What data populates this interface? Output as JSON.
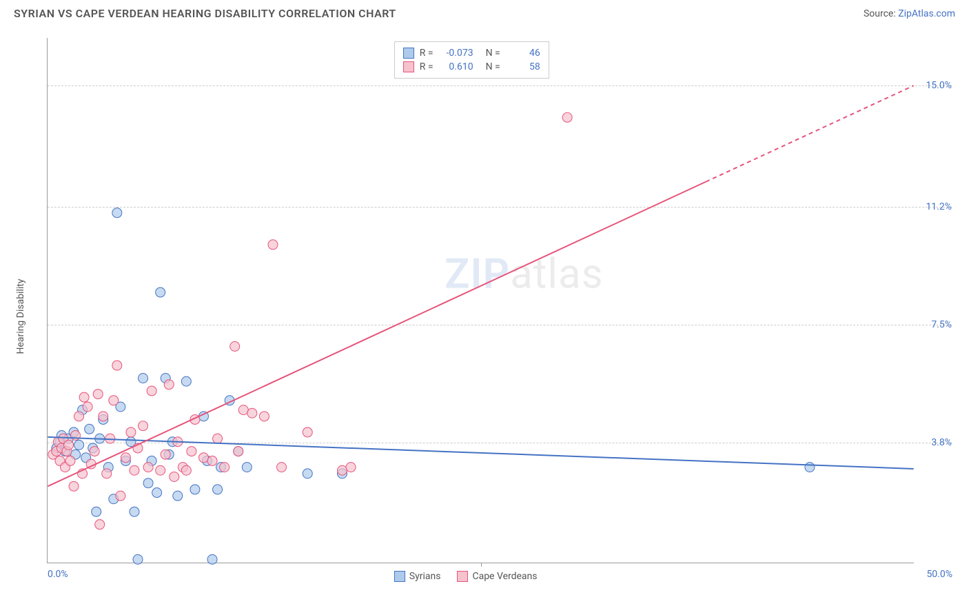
{
  "title": "SYRIAN VS CAPE VERDEAN HEARING DISABILITY CORRELATION CHART",
  "source_label": "Source:",
  "source_link": "ZipAtlas.com",
  "y_axis_label": "Hearing Disability",
  "watermark_zip": "ZIP",
  "watermark_atlas": "atlas",
  "chart": {
    "type": "scatter",
    "xlim": [
      0,
      50
    ],
    "ylim": [
      0,
      16.5
    ],
    "x_ticks": [
      0,
      25,
      50
    ],
    "x_tick_labels": [
      "0.0%",
      "",
      "50.0%"
    ],
    "y_gridlines": [
      3.8,
      7.5,
      11.2,
      15.0
    ],
    "y_tick_labels": [
      "3.8%",
      "7.5%",
      "11.2%",
      "15.0%"
    ],
    "background_color": "#ffffff",
    "grid_color": "#cccccc",
    "axis_color": "#999999",
    "label_color": "#4472c4",
    "series": [
      {
        "name": "Syrians",
        "fill_color": "#aecbeb",
        "stroke_color": "#4472c4",
        "R": "-0.073",
        "N": "46",
        "trend": {
          "x1": 0,
          "y1": 3.95,
          "x2": 50,
          "y2": 2.95,
          "dash_from_x": 50
        },
        "points": [
          [
            0.5,
            3.6
          ],
          [
            0.7,
            3.8
          ],
          [
            0.8,
            4.0
          ],
          [
            1.0,
            3.5
          ],
          [
            1.2,
            3.9
          ],
          [
            1.5,
            4.1
          ],
          [
            1.6,
            3.4
          ],
          [
            1.8,
            3.7
          ],
          [
            2.0,
            4.8
          ],
          [
            2.2,
            3.3
          ],
          [
            2.4,
            4.2
          ],
          [
            2.6,
            3.6
          ],
          [
            2.8,
            1.6
          ],
          [
            3.0,
            3.9
          ],
          [
            3.2,
            4.5
          ],
          [
            3.5,
            3.0
          ],
          [
            3.8,
            2.0
          ],
          [
            4.0,
            11.0
          ],
          [
            4.2,
            4.9
          ],
          [
            4.5,
            3.2
          ],
          [
            4.8,
            3.8
          ],
          [
            5.0,
            1.6
          ],
          [
            5.2,
            0.1
          ],
          [
            5.5,
            5.8
          ],
          [
            5.8,
            2.5
          ],
          [
            6.0,
            3.2
          ],
          [
            6.3,
            2.2
          ],
          [
            6.5,
            8.5
          ],
          [
            6.8,
            5.8
          ],
          [
            7.0,
            3.4
          ],
          [
            7.2,
            3.8
          ],
          [
            7.5,
            2.1
          ],
          [
            8.0,
            5.7
          ],
          [
            8.5,
            2.3
          ],
          [
            9.0,
            4.6
          ],
          [
            9.2,
            3.2
          ],
          [
            9.5,
            0.1
          ],
          [
            9.8,
            2.3
          ],
          [
            10.0,
            3.0
          ],
          [
            10.5,
            5.1
          ],
          [
            11.0,
            3.5
          ],
          [
            11.5,
            3.0
          ],
          [
            15.0,
            2.8
          ],
          [
            17.0,
            2.8
          ],
          [
            44.0,
            3.0
          ]
        ]
      },
      {
        "name": "Cape Verdeans",
        "fill_color": "#f5c2cd",
        "stroke_color": "#e6537a",
        "R": "0.610",
        "N": "58",
        "trend": {
          "x1": 0,
          "y1": 2.4,
          "x2": 50,
          "y2": 15.0,
          "dash_from_x": 38
        },
        "points": [
          [
            0.3,
            3.4
          ],
          [
            0.5,
            3.5
          ],
          [
            0.6,
            3.8
          ],
          [
            0.7,
            3.2
          ],
          [
            0.8,
            3.6
          ],
          [
            0.9,
            3.9
          ],
          [
            1.0,
            3.0
          ],
          [
            1.1,
            3.5
          ],
          [
            1.2,
            3.7
          ],
          [
            1.3,
            3.2
          ],
          [
            1.5,
            2.4
          ],
          [
            1.6,
            4.0
          ],
          [
            1.8,
            4.6
          ],
          [
            2.0,
            2.8
          ],
          [
            2.1,
            5.2
          ],
          [
            2.3,
            4.9
          ],
          [
            2.5,
            3.1
          ],
          [
            2.7,
            3.5
          ],
          [
            2.9,
            5.3
          ],
          [
            3.0,
            1.2
          ],
          [
            3.2,
            4.6
          ],
          [
            3.4,
            2.8
          ],
          [
            3.6,
            3.9
          ],
          [
            3.8,
            5.1
          ],
          [
            4.0,
            6.2
          ],
          [
            4.2,
            2.1
          ],
          [
            4.5,
            3.3
          ],
          [
            4.8,
            4.1
          ],
          [
            5.0,
            2.9
          ],
          [
            5.2,
            3.6
          ],
          [
            5.5,
            4.3
          ],
          [
            5.8,
            3.0
          ],
          [
            6.0,
            5.4
          ],
          [
            6.5,
            2.9
          ],
          [
            6.8,
            3.4
          ],
          [
            7.0,
            5.6
          ],
          [
            7.3,
            2.7
          ],
          [
            7.5,
            3.8
          ],
          [
            7.8,
            3.0
          ],
          [
            8.0,
            2.9
          ],
          [
            8.3,
            3.5
          ],
          [
            8.5,
            4.5
          ],
          [
            9.0,
            3.3
          ],
          [
            9.5,
            3.2
          ],
          [
            9.8,
            3.9
          ],
          [
            10.2,
            3.0
          ],
          [
            10.8,
            6.8
          ],
          [
            11.0,
            3.5
          ],
          [
            11.3,
            4.8
          ],
          [
            11.8,
            4.7
          ],
          [
            12.5,
            4.6
          ],
          [
            13.0,
            10.0
          ],
          [
            13.5,
            3.0
          ],
          [
            15.0,
            4.1
          ],
          [
            17.0,
            2.9
          ],
          [
            17.5,
            3.0
          ],
          [
            30.0,
            14.0
          ]
        ]
      }
    ]
  },
  "legend": {
    "R_label": "R =",
    "N_label": "N ="
  }
}
